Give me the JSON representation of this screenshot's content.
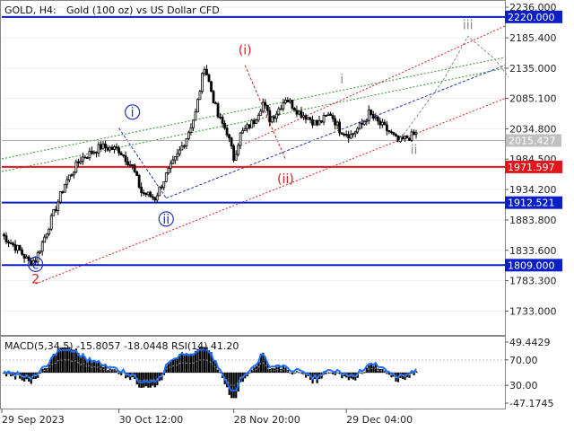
{
  "header": {
    "symbol": "GOLD, H4:",
    "description": "Gold (100 oz) vs US Dollar CFD"
  },
  "colors": {
    "candle": "#000000",
    "level_blue": "#0b1fc5",
    "level_red": "#e4141b",
    "wave_red": "#d42020",
    "wave_blue": "#2033b8",
    "wave_gray": "#8c8c8c",
    "green_dotted": "#2f9a2f",
    "macd_blue": "#1a6fff",
    "signal_gray": "#9a9a9a",
    "price_label_bg": "#c0c0c0"
  },
  "chart_data": {
    "type": "line",
    "price_axis": {
      "ticks": [
        "2236.000",
        "2185.400",
        "2135.000",
        "2085.100",
        "2034.800",
        "1984.500",
        "1934.200",
        "1883.800",
        "1833.600",
        "1783.300",
        "1733.000"
      ],
      "min": 1695,
      "max": 2245
    },
    "time_axis": {
      "labels": [
        "29 Sep 2023",
        "30 Oct 12:00",
        "28 Nov 20:00",
        "29 Dec 04:00"
      ],
      "label_bar_index": [
        0,
        52,
        103,
        153
      ],
      "bars_total": 184
    },
    "levels": [
      {
        "label": "2220.000",
        "value": 2220.0,
        "color": "blue"
      },
      {
        "label": "1971.597",
        "value": 1971.597,
        "color": "red"
      },
      {
        "label": "1912.521",
        "value": 1912.521,
        "color": "blue"
      },
      {
        "label": "1809.000",
        "value": 1809.0,
        "color": "blue"
      }
    ],
    "current_price": {
      "label": "2015.427",
      "value": 2015.427
    },
    "price_series": {
      "anchors_bar": [
        0,
        4,
        8,
        12,
        15,
        20,
        28,
        35,
        44,
        52,
        58,
        62,
        68,
        73,
        78,
        82,
        86,
        90,
        96,
        100,
        103,
        106,
        112,
        116,
        119,
        122,
        126,
        132,
        136,
        140,
        146,
        150,
        155,
        160,
        163,
        167,
        172,
        176,
        180,
        184
      ],
      "anchors_price": [
        1860,
        1846,
        1833,
        1814,
        1818,
        1865,
        1944,
        1985,
        2005,
        2000,
        1972,
        1930,
        1920,
        1958,
        1990,
        2021,
        2060,
        2140,
        2055,
        2030,
        1986,
        2025,
        2048,
        2078,
        2051,
        2062,
        2086,
        2062,
        2054,
        2042,
        2060,
        2034,
        2024,
        2042,
        2060,
        2045,
        2030,
        2013,
        2020,
        2026
      ]
    },
    "wave_labels": [
      {
        "text": "c",
        "bar": 15,
        "price": 1803,
        "style": "blue-circle"
      },
      {
        "text": "2",
        "bar": 15,
        "price": 1779,
        "style": "red"
      },
      {
        "text": "i",
        "bar": 58,
        "price": 2055,
        "style": "blue-circle"
      },
      {
        "text": "ii",
        "bar": 73,
        "price": 1878,
        "style": "blue-circle"
      },
      {
        "text": "(i)",
        "bar": 108,
        "price": 2158,
        "style": "red"
      },
      {
        "text": "(ii)",
        "bar": 126,
        "price": 1945,
        "style": "red"
      },
      {
        "text": "i",
        "bar": 151,
        "price": 2110,
        "style": "gray"
      },
      {
        "text": "ii",
        "bar": 183,
        "price": 1993,
        "style": "gray"
      },
      {
        "text": "iii",
        "bar": 207,
        "price": 2200,
        "style": "gray"
      }
    ],
    "indicator": {
      "title": "MACD(5,34,5) -15.8057 -18.0448 RSI(14) 41.20",
      "ticks": [
        "49.4429",
        "70.00",
        "30.00",
        "-47.1745"
      ],
      "min": -55,
      "max": 55
    }
  }
}
